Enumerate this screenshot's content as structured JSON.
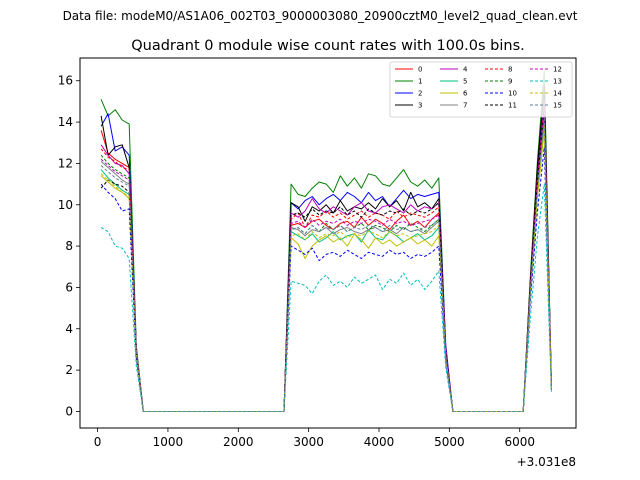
{
  "chart_data": {
    "type": "line",
    "suptitle": "Data file: modeM0/AS1A06_002T03_9000003080_20900cztM0_level2_quad_clean.evt",
    "title": "Quadrant 0 module wise count rates with 100.0s bins.",
    "xlabel": "",
    "ylabel": "",
    "x_offset_label": "+3.031e8",
    "xlim": [
      -250,
      6800
    ],
    "ylim": [
      -0.8,
      17.1
    ],
    "xticks": [
      0,
      1000,
      2000,
      3000,
      4000,
      5000,
      6000
    ],
    "yticks": [
      0,
      2,
      4,
      6,
      8,
      10,
      12,
      14,
      16
    ],
    "grid": false,
    "legend_position": "top-right",
    "legend_columns": 4,
    "x": [
      50,
      150,
      250,
      350,
      450,
      550,
      650,
      750,
      850,
      950,
      1050,
      1150,
      1250,
      1350,
      1450,
      1550,
      1650,
      1750,
      1850,
      1950,
      2050,
      2150,
      2250,
      2350,
      2450,
      2550,
      2650,
      2750,
      2850,
      2950,
      3050,
      3150,
      3250,
      3350,
      3450,
      3550,
      3650,
      3750,
      3850,
      3950,
      4050,
      4150,
      4250,
      4350,
      4450,
      4550,
      4650,
      4750,
      4850,
      4950,
      5050,
      5150,
      5250,
      5350,
      5450,
      5550,
      5650,
      5750,
      5850,
      5950,
      6050,
      6150,
      6250,
      6350,
      6450
    ],
    "series": [
      {
        "name": "0",
        "color": "#ff0000",
        "dash": "solid",
        "values": [
          13.6,
          12.5,
          12.2,
          12.0,
          11.8,
          3.0,
          0,
          0,
          0,
          0,
          0,
          0,
          0,
          0,
          0,
          0,
          0,
          0,
          0,
          0,
          0,
          0,
          0,
          0,
          0,
          0,
          0,
          9.0,
          9.1,
          8.9,
          9.2,
          9.3,
          9.0,
          8.8,
          9.1,
          9.2,
          8.9,
          9.4,
          9.0,
          9.3,
          9.1,
          8.8,
          9.2,
          9.5,
          9.0,
          9.2,
          8.9,
          9.3,
          9.6,
          2.8,
          0,
          0,
          0,
          0,
          0,
          0,
          0,
          0,
          0,
          0,
          0,
          6.0,
          11.0,
          15.0,
          1.5
        ]
      },
      {
        "name": "1",
        "color": "#008000",
        "dash": "solid",
        "values": [
          15.1,
          14.3,
          14.6,
          14.1,
          13.9,
          3.2,
          0,
          0,
          0,
          0,
          0,
          0,
          0,
          0,
          0,
          0,
          0,
          0,
          0,
          0,
          0,
          0,
          0,
          0,
          0,
          0,
          0,
          11.0,
          10.5,
          10.4,
          10.8,
          11.1,
          11.0,
          10.6,
          11.4,
          10.9,
          11.3,
          10.8,
          11.5,
          11.4,
          11.0,
          10.9,
          11.3,
          11.7,
          11.1,
          10.9,
          11.2,
          10.8,
          11.3,
          3.0,
          0,
          0,
          0,
          0,
          0,
          0,
          0,
          0,
          0,
          0,
          0,
          6.5,
          12.0,
          16.5,
          1.3
        ]
      },
      {
        "name": "2",
        "color": "#0000ff",
        "dash": "solid",
        "values": [
          13.8,
          14.4,
          12.6,
          12.8,
          12.4,
          3.0,
          0,
          0,
          0,
          0,
          0,
          0,
          0,
          0,
          0,
          0,
          0,
          0,
          0,
          0,
          0,
          0,
          0,
          0,
          0,
          0,
          0,
          10.1,
          9.8,
          10.2,
          10.4,
          10.0,
          10.3,
          10.5,
          10.2,
          10.6,
          10.4,
          10.1,
          10.6,
          10.2,
          10.4,
          9.9,
          10.3,
          10.7,
          10.3,
          10.5,
          10.4,
          10.5,
          10.6,
          3.2,
          0,
          0,
          0,
          0,
          0,
          0,
          0,
          0,
          0,
          0,
          0,
          6.2,
          11.5,
          15.6,
          1.2
        ]
      },
      {
        "name": "3",
        "color": "#000000",
        "dash": "solid",
        "values": [
          14.3,
          12.4,
          12.8,
          12.9,
          11.8,
          3.0,
          0,
          0,
          0,
          0,
          0,
          0,
          0,
          0,
          0,
          0,
          0,
          0,
          0,
          0,
          0,
          0,
          0,
          0,
          0,
          0,
          0,
          10.1,
          9.9,
          9.2,
          9.9,
          9.7,
          10.0,
          9.6,
          10.2,
          9.7,
          9.9,
          9.8,
          10.1,
          9.8,
          10.3,
          9.9,
          10.2,
          9.7,
          10.6,
          9.9,
          10.1,
          9.8,
          10.3,
          2.9,
          0,
          0,
          0,
          0,
          0,
          0,
          0,
          0,
          0,
          0,
          0,
          6.3,
          11.8,
          15.8,
          1.2
        ]
      },
      {
        "name": "4",
        "color": "#bf00bf",
        "dash": "solid",
        "values": [
          12.9,
          12.4,
          12.0,
          11.9,
          11.5,
          3.0,
          0,
          0,
          0,
          0,
          0,
          0,
          0,
          0,
          0,
          0,
          0,
          0,
          0,
          0,
          0,
          0,
          0,
          0,
          0,
          0,
          0,
          9.6,
          9.4,
          9.7,
          10.3,
          9.8,
          9.6,
          9.9,
          9.7,
          9.5,
          9.9,
          10.1,
          9.7,
          9.6,
          9.9,
          10.0,
          9.8,
          9.6,
          10.0,
          9.7,
          9.9,
          9.8,
          10.1,
          3.0,
          0,
          0,
          0,
          0,
          0,
          0,
          0,
          0,
          0,
          0,
          0,
          6.0,
          11.2,
          15.0,
          1.2
        ]
      },
      {
        "name": "5",
        "color": "#00bf80",
        "dash": "solid",
        "values": [
          11.7,
          11.3,
          11.0,
          10.7,
          10.5,
          2.8,
          0,
          0,
          0,
          0,
          0,
          0,
          0,
          0,
          0,
          0,
          0,
          0,
          0,
          0,
          0,
          0,
          0,
          0,
          0,
          0,
          0,
          8.7,
          8.5,
          8.3,
          8.6,
          8.2,
          8.4,
          8.7,
          8.3,
          8.5,
          8.6,
          8.2,
          8.8,
          8.4,
          8.3,
          8.7,
          8.5,
          8.2,
          8.4,
          8.6,
          8.3,
          8.5,
          8.9,
          2.6,
          0,
          0,
          0,
          0,
          0,
          0,
          0,
          0,
          0,
          0,
          0,
          5.8,
          10.5,
          14.0,
          1.1
        ]
      },
      {
        "name": "6",
        "color": "#bfbf00",
        "dash": "solid",
        "values": [
          11.4,
          11.1,
          10.8,
          10.6,
          10.3,
          2.7,
          0,
          0,
          0,
          0,
          0,
          0,
          0,
          0,
          0,
          0,
          0,
          0,
          0,
          0,
          0,
          0,
          0,
          0,
          0,
          0,
          0,
          8.4,
          8.1,
          7.4,
          8.0,
          8.3,
          8.5,
          8.2,
          8.4,
          8.0,
          8.6,
          8.3,
          7.9,
          8.4,
          8.1,
          8.3,
          8.0,
          8.2,
          8.4,
          8.1,
          8.3,
          8.0,
          8.5,
          2.6,
          0,
          0,
          0,
          0,
          0,
          0,
          0,
          0,
          0,
          0,
          0,
          5.6,
          10.3,
          13.6,
          1.1
        ]
      },
      {
        "name": "7",
        "color": "#808080",
        "dash": "solid",
        "values": [
          12.1,
          11.8,
          11.5,
          11.2,
          11.0,
          2.9,
          0,
          0,
          0,
          0,
          0,
          0,
          0,
          0,
          0,
          0,
          0,
          0,
          0,
          0,
          0,
          0,
          0,
          0,
          0,
          0,
          0,
          8.9,
          8.8,
          8.5,
          8.8,
          8.7,
          8.9,
          8.6,
          8.8,
          8.9,
          8.7,
          8.6,
          8.8,
          8.9,
          8.7,
          8.8,
          8.6,
          8.9,
          8.7,
          8.8,
          8.6,
          8.9,
          9.2,
          2.7,
          0,
          0,
          0,
          0,
          0,
          0,
          0,
          0,
          0,
          0,
          0,
          5.9,
          10.8,
          14.3,
          1.2
        ]
      },
      {
        "name": "8",
        "color": "#ff0000",
        "dash": "dashed",
        "values": [
          12.7,
          12.3,
          12.1,
          11.8,
          11.7,
          3.0,
          0,
          0,
          0,
          0,
          0,
          0,
          0,
          0,
          0,
          0,
          0,
          0,
          0,
          0,
          0,
          0,
          0,
          0,
          0,
          0,
          0,
          9.3,
          9.6,
          8.9,
          9.5,
          9.4,
          9.7,
          9.4,
          9.6,
          9.3,
          9.5,
          9.7,
          9.4,
          9.6,
          9.5,
          9.3,
          9.7,
          9.4,
          9.6,
          9.5,
          9.4,
          9.6,
          9.9,
          2.9,
          0,
          0,
          0,
          0,
          0,
          0,
          0,
          0,
          0,
          0,
          0,
          6.1,
          11.2,
          14.9,
          1.2
        ]
      },
      {
        "name": "9",
        "color": "#008000",
        "dash": "dashed",
        "values": [
          12.4,
          12.0,
          11.7,
          11.5,
          11.3,
          2.9,
          0,
          0,
          0,
          0,
          0,
          0,
          0,
          0,
          0,
          0,
          0,
          0,
          0,
          0,
          0,
          0,
          0,
          0,
          0,
          0,
          0,
          8.8,
          8.9,
          8.6,
          9.0,
          8.7,
          9.1,
          8.8,
          9.0,
          8.7,
          8.9,
          9.1,
          8.8,
          9.0,
          8.9,
          8.7,
          9.0,
          8.8,
          9.1,
          8.9,
          8.7,
          9.0,
          9.3,
          2.7,
          0,
          0,
          0,
          0,
          0,
          0,
          0,
          0,
          0,
          0,
          0,
          5.9,
          10.9,
          14.5,
          1.2
        ]
      },
      {
        "name": "10",
        "color": "#0000ff",
        "dash": "dashed",
        "values": [
          11.0,
          10.6,
          10.3,
          9.7,
          9.8,
          2.6,
          0,
          0,
          0,
          0,
          0,
          0,
          0,
          0,
          0,
          0,
          0,
          0,
          0,
          0,
          0,
          0,
          0,
          0,
          0,
          0,
          0,
          8.0,
          7.8,
          7.6,
          7.9,
          7.3,
          7.6,
          7.7,
          7.5,
          7.8,
          7.6,
          7.4,
          7.7,
          7.6,
          7.5,
          7.8,
          7.6,
          7.7,
          7.4,
          7.6,
          7.5,
          7.7,
          8.0,
          2.4,
          0,
          0,
          0,
          0,
          0,
          0,
          0,
          0,
          0,
          0,
          0,
          5.3,
          9.6,
          12.8,
          1.0
        ]
      },
      {
        "name": "11",
        "color": "#000000",
        "dash": "dashed",
        "values": [
          10.8,
          11.2,
          11.0,
          10.9,
          10.6,
          2.8,
          0,
          0,
          0,
          0,
          0,
          0,
          0,
          0,
          0,
          0,
          0,
          0,
          0,
          0,
          0,
          0,
          0,
          0,
          0,
          0,
          0,
          9.5,
          9.6,
          9.4,
          9.8,
          9.5,
          9.7,
          9.6,
          9.9,
          9.5,
          9.7,
          9.4,
          9.8,
          9.6,
          9.5,
          9.7,
          9.6,
          9.8,
          9.5,
          9.7,
          9.6,
          9.8,
          10.1,
          2.9,
          0,
          0,
          0,
          0,
          0,
          0,
          0,
          0,
          0,
          0,
          0,
          6.0,
          11.1,
          14.8,
          1.2
        ]
      },
      {
        "name": "12",
        "color": "#bf00bf",
        "dash": "dashed",
        "values": [
          12.2,
          11.9,
          11.6,
          11.4,
          11.2,
          2.9,
          0,
          0,
          0,
          0,
          0,
          0,
          0,
          0,
          0,
          0,
          0,
          0,
          0,
          0,
          0,
          0,
          0,
          0,
          0,
          0,
          0,
          9.1,
          9.2,
          8.9,
          9.3,
          9.0,
          9.2,
          9.1,
          9.3,
          9.0,
          9.2,
          9.1,
          9.3,
          9.2,
          9.0,
          9.3,
          9.1,
          9.2,
          9.0,
          9.1,
          9.2,
          9.3,
          9.5,
          2.8,
          0,
          0,
          0,
          0,
          0,
          0,
          0,
          0,
          0,
          0,
          0,
          6.0,
          11.0,
          14.7,
          1.2
        ]
      },
      {
        "name": "13",
        "color": "#00bfbf",
        "dash": "dashed",
        "values": [
          8.9,
          8.7,
          8.0,
          7.9,
          7.4,
          2.2,
          0,
          0,
          0,
          0,
          0,
          0,
          0,
          0,
          0,
          0,
          0,
          0,
          0,
          0,
          0,
          0,
          0,
          0,
          0,
          0,
          0,
          6.3,
          6.2,
          6.1,
          5.7,
          6.3,
          6.6,
          6.1,
          6.3,
          6.0,
          6.5,
          6.2,
          6.4,
          6.6,
          5.9,
          6.4,
          6.2,
          6.7,
          6.1,
          6.4,
          5.9,
          6.3,
          6.8,
          2.1,
          0,
          0,
          0,
          0,
          0,
          0,
          0,
          0,
          0,
          0,
          0,
          4.5,
          8.4,
          11.0,
          0.9
        ]
      },
      {
        "name": "14",
        "color": "#bfbf00",
        "dash": "dashed",
        "values": [
          11.5,
          11.2,
          10.9,
          10.6,
          10.4,
          2.8,
          0,
          0,
          0,
          0,
          0,
          0,
          0,
          0,
          0,
          0,
          0,
          0,
          0,
          0,
          0,
          0,
          0,
          0,
          0,
          0,
          0,
          8.5,
          8.6,
          8.3,
          8.7,
          8.4,
          8.6,
          8.5,
          8.7,
          8.4,
          8.6,
          8.5,
          8.7,
          8.6,
          8.4,
          8.7,
          8.5,
          8.6,
          8.4,
          8.5,
          8.6,
          8.7,
          9.0,
          2.6,
          0,
          0,
          0,
          0,
          0,
          0,
          0,
          0,
          0,
          0,
          0,
          5.7,
          10.4,
          13.8,
          1.1
        ]
      },
      {
        "name": "15",
        "color": "#6080a0",
        "dash": "dashed",
        "values": [
          11.9,
          11.6,
          11.3,
          11.1,
          10.9,
          2.9,
          0,
          0,
          0,
          0,
          0,
          0,
          0,
          0,
          0,
          0,
          0,
          0,
          0,
          0,
          0,
          0,
          0,
          0,
          0,
          0,
          0,
          8.8,
          8.9,
          8.6,
          9.0,
          8.7,
          8.9,
          8.8,
          9.0,
          8.7,
          8.9,
          8.8,
          9.0,
          8.9,
          8.7,
          9.0,
          8.8,
          8.9,
          8.7,
          8.8,
          8.9,
          9.0,
          9.3,
          2.7,
          0,
          0,
          0,
          0,
          0,
          0,
          0,
          0,
          0,
          0,
          0,
          5.8,
          10.7,
          14.2,
          1.1
        ]
      }
    ]
  }
}
